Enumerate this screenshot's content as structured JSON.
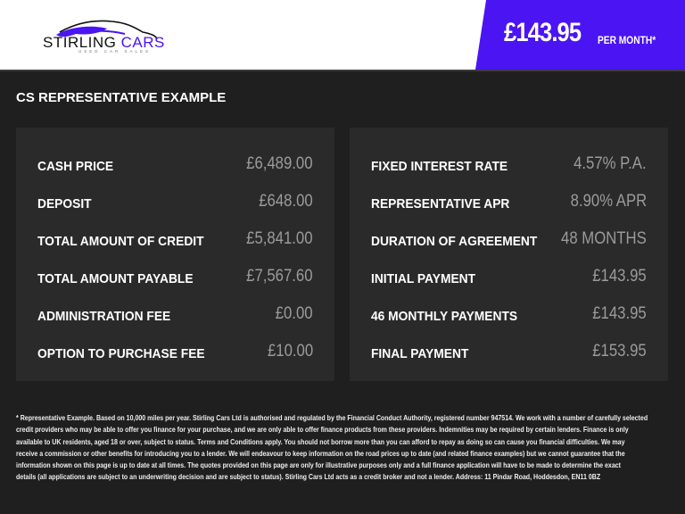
{
  "header": {
    "logo_text_1": "STIRLING",
    "logo_text_2": "CARS",
    "logo_subtext": "USED CAR SALES",
    "monthly_price": "£143.95",
    "per_month_label": "PER MONTH*",
    "accent_color": "#4b14f3"
  },
  "title": "CS REPRESENTATIVE EXAMPLE",
  "left_panel": [
    {
      "label": "CASH PRICE",
      "value": "£6,489.00"
    },
    {
      "label": "DEPOSIT",
      "value": "£648.00"
    },
    {
      "label": "TOTAL AMOUNT OF CREDIT",
      "value": "£5,841.00"
    },
    {
      "label": "TOTAL AMOUNT PAYABLE",
      "value": "£7,567.60"
    },
    {
      "label": "ADMINISTRATION FEE",
      "value": "£0.00"
    },
    {
      "label": "OPTION TO PURCHASE FEE",
      "value": "£10.00"
    }
  ],
  "right_panel": [
    {
      "label": "FIXED INTEREST RATE",
      "value": "4.57% P.A."
    },
    {
      "label": "REPRESENTATIVE APR",
      "value": "8.90% APR"
    },
    {
      "label": "DURATION OF AGREEMENT",
      "value": "48 MONTHS"
    },
    {
      "label": "INITIAL PAYMENT",
      "value": "£143.95"
    },
    {
      "label": "46 MONTHLY PAYMENTS",
      "value": "£143.95"
    },
    {
      "label": "FINAL PAYMENT",
      "value": "£153.95"
    }
  ],
  "footer_lines": [
    "* Representative Example. Based on 10,000 miles per year. Stirling Cars Ltd is authorised and regulated by the Financial Conduct Authority, registered number 947514. We work with a number of carefully selected",
    "credit providers who may be able to offer you finance for your purchase, and we are only able to offer finance products from these providers. Indemnities may be required by certain lenders. Finance is only",
    "available to UK residents, aged 18 or over, subject to status. Terms and Conditions apply. You should not borrow more than you can afford to repay as doing so can cause you financial difficulties. We may",
    "receive a commission or other benefits for introducing you to a lender. We will endeavour to keep information on the road prices up to date (and related finance examples) but we cannot guarantee that the",
    "information shown on this page is up to date at all times. The quotes provided on this page are only for illustrative purposes only and a full finance application will have to be made to determine the exact",
    "details (all applications are subject to an underwriting decision and are subject to status). Stirling Cars Ltd acts as a credit broker and not a lender. Address: 11 Pindar Road, Hoddesdon, EN11 0BZ"
  ]
}
